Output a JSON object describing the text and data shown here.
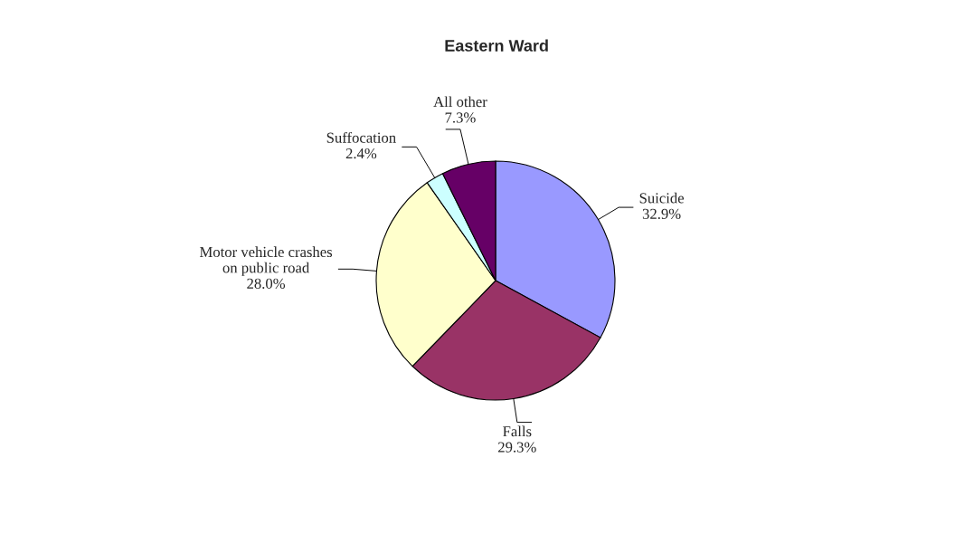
{
  "chart_data": {
    "type": "pie",
    "title": "Eastern Ward",
    "categories": [
      "Suicide",
      "Falls",
      "Motor vehicle crashes\non public road",
      "Suffocation",
      "All other"
    ],
    "values": [
      32.9,
      29.3,
      28.0,
      2.4,
      7.3
    ],
    "value_labels": [
      "32.9%",
      "29.3%",
      "28.0%",
      "2.4%",
      "7.3%"
    ],
    "colors": [
      "#9999ff",
      "#993366",
      "#ffffcc",
      "#ccffff",
      "#660066"
    ],
    "legend": false
  }
}
